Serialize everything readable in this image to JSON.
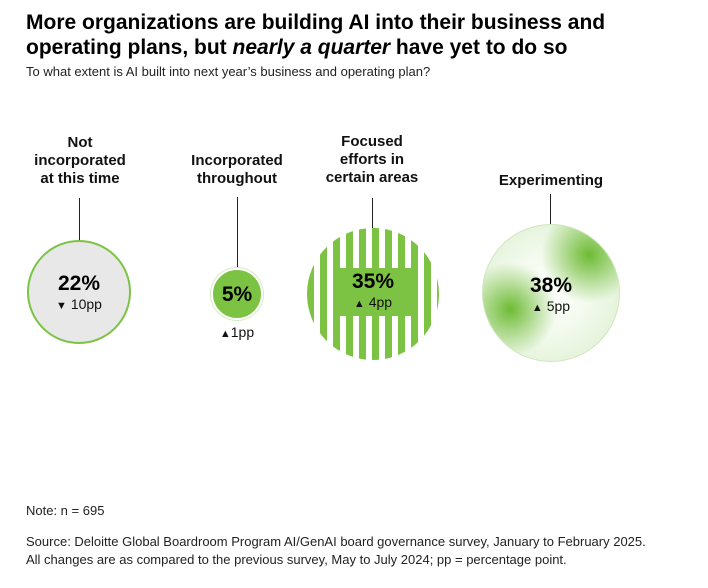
{
  "header": {
    "title_part1": "More organizations are building AI into their business and operating plans, but ",
    "title_emphasis": "nearly a quarter",
    "title_part2": " have yet to do so",
    "subtitle": "To what extent is AI built into next year’s business and operating plan?"
  },
  "chart_data": {
    "type": "bubble",
    "categories": [
      "Not incorporated at this time",
      "Incorporated throughout",
      "Focused efforts in certain areas",
      "Experimenting"
    ],
    "series": [
      {
        "values": [
          22,
          5,
          35,
          38
        ],
        "changes_pp": [
          -10,
          1,
          4,
          5
        ]
      }
    ],
    "items": [
      {
        "label_lines": [
          "Not",
          "incorporated",
          "at this time"
        ],
        "value": 22,
        "value_label": "22%",
        "change": -10,
        "change_label": "10pp",
        "arrow": "▼"
      },
      {
        "label_lines": [
          "Incorporated",
          "throughout"
        ],
        "value": 5,
        "value_label": "5%",
        "change": 1,
        "change_label": "1pp",
        "arrow": "▲"
      },
      {
        "label_lines": [
          "Focused",
          "efforts in",
          "certain areas"
        ],
        "value": 35,
        "value_label": "35%",
        "change": 4,
        "change_label": "4pp",
        "arrow": "▲"
      },
      {
        "label_lines": [
          "Experimenting"
        ],
        "value": 38,
        "value_label": "38%",
        "change": 5,
        "change_label": "5pp",
        "arrow": "▲"
      }
    ],
    "colors": {
      "accent": "#7cc343",
      "neutral": "#e8e8e8"
    }
  },
  "footer": {
    "note": "Note: n = 695",
    "source_line1": "Source: Deloitte Global Boardroom Program AI/GenAI board governance survey, January to February 2025.",
    "source_line2": "All changes are as compared to the previous survey, May to July 2024; pp = percentage point."
  }
}
